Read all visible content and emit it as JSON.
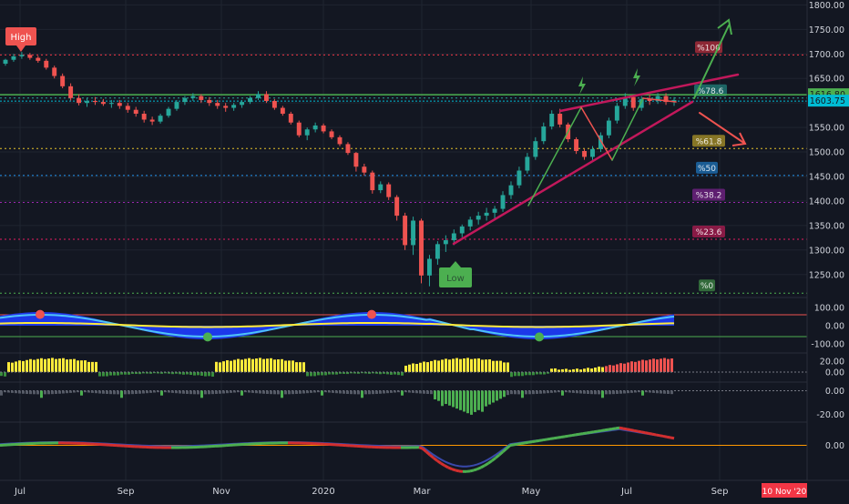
{
  "chart_data": {
    "type": "candlestick",
    "price_axis": {
      "ticks": [
        "1800.00",
        "1750.00",
        "1700.00",
        "1650.00",
        "1600.00",
        "1550.00",
        "1500.00",
        "1450.00",
        "1400.00",
        "1350.00",
        "1300.00",
        "1250.00"
      ],
      "ylim": [
        1205,
        1810
      ]
    },
    "price_tags": [
      {
        "label": "1616.80",
        "value": 1616.8,
        "color": "#4caf50"
      },
      {
        "label": "1603.75",
        "value": 1603.75,
        "color": "#00bcd4"
      }
    ],
    "x_axis": {
      "labels": [
        "Jul",
        "Sep",
        "Nov",
        "2020",
        "Mar",
        "May",
        "Jul",
        "Sep"
      ],
      "date_badge": "10 Nov '20"
    },
    "markers": {
      "high_label": "High",
      "low_label": "Low"
    },
    "fib_levels": [
      {
        "label": "%100",
        "value": 1698,
        "color": "#f23645"
      },
      {
        "label": "%78.6",
        "value": 1610,
        "color": "#26a69a"
      },
      {
        "label": "%61.8",
        "value": 1507,
        "color": "#e6c229"
      },
      {
        "label": "%50",
        "value": 1452,
        "color": "#2196f3"
      },
      {
        "label": "%38.2",
        "value": 1397,
        "color": "#9c27b0"
      },
      {
        "label": "%23.6",
        "value": 1322,
        "color": "#e91e63"
      },
      {
        "label": "%0",
        "value": 1212,
        "color": "#4caf50"
      }
    ],
    "candles": [
      [
        1680,
        1690,
        1676,
        1688
      ],
      [
        1688,
        1700,
        1684,
        1695
      ],
      [
        1695,
        1704,
        1690,
        1698
      ],
      [
        1698,
        1702,
        1688,
        1692
      ],
      [
        1692,
        1696,
        1682,
        1686
      ],
      [
        1686,
        1690,
        1668,
        1672
      ],
      [
        1672,
        1676,
        1650,
        1655
      ],
      [
        1655,
        1660,
        1630,
        1634
      ],
      [
        1634,
        1640,
        1605,
        1610
      ],
      [
        1610,
        1618,
        1595,
        1600
      ],
      [
        1600,
        1610,
        1592,
        1604
      ],
      [
        1604,
        1612,
        1596,
        1602
      ],
      [
        1602,
        1608,
        1594,
        1598
      ],
      [
        1598,
        1606,
        1590,
        1600
      ],
      [
        1600,
        1606,
        1588,
        1594
      ],
      [
        1594,
        1600,
        1580,
        1586
      ],
      [
        1586,
        1592,
        1572,
        1578
      ],
      [
        1578,
        1584,
        1560,
        1566
      ],
      [
        1566,
        1572,
        1555,
        1562
      ],
      [
        1562,
        1578,
        1558,
        1574
      ],
      [
        1574,
        1592,
        1570,
        1588
      ],
      [
        1588,
        1606,
        1584,
        1602
      ],
      [
        1602,
        1614,
        1596,
        1610
      ],
      [
        1610,
        1620,
        1604,
        1614
      ],
      [
        1614,
        1618,
        1600,
        1606
      ],
      [
        1606,
        1612,
        1594,
        1600
      ],
      [
        1600,
        1606,
        1588,
        1594
      ],
      [
        1594,
        1600,
        1582,
        1590
      ],
      [
        1590,
        1600,
        1584,
        1596
      ],
      [
        1596,
        1606,
        1590,
        1602
      ],
      [
        1602,
        1614,
        1598,
        1610
      ],
      [
        1610,
        1624,
        1606,
        1618
      ],
      [
        1618,
        1624,
        1600,
        1604
      ],
      [
        1604,
        1608,
        1586,
        1590
      ],
      [
        1590,
        1594,
        1574,
        1578
      ],
      [
        1578,
        1582,
        1556,
        1560
      ],
      [
        1560,
        1564,
        1530,
        1534
      ],
      [
        1534,
        1550,
        1524,
        1546
      ],
      [
        1546,
        1560,
        1540,
        1554
      ],
      [
        1554,
        1558,
        1538,
        1542
      ],
      [
        1542,
        1546,
        1526,
        1530
      ],
      [
        1530,
        1534,
        1512,
        1516
      ],
      [
        1516,
        1520,
        1494,
        1498
      ],
      [
        1498,
        1500,
        1460,
        1470
      ],
      [
        1470,
        1476,
        1452,
        1458
      ],
      [
        1458,
        1462,
        1415,
        1422
      ],
      [
        1422,
        1440,
        1416,
        1434
      ],
      [
        1434,
        1438,
        1402,
        1408
      ],
      [
        1408,
        1412,
        1360,
        1370
      ],
      [
        1370,
        1376,
        1300,
        1310
      ],
      [
        1310,
        1368,
        1290,
        1360
      ],
      [
        1360,
        1364,
        1232,
        1248
      ],
      [
        1248,
        1290,
        1226,
        1282
      ],
      [
        1282,
        1318,
        1270,
        1312
      ],
      [
        1312,
        1330,
        1296,
        1320
      ],
      [
        1320,
        1342,
        1310,
        1334
      ],
      [
        1334,
        1352,
        1326,
        1348
      ],
      [
        1348,
        1368,
        1340,
        1362
      ],
      [
        1362,
        1378,
        1352,
        1370
      ],
      [
        1370,
        1386,
        1360,
        1376
      ],
      [
        1376,
        1390,
        1364,
        1384
      ],
      [
        1384,
        1420,
        1378,
        1412
      ],
      [
        1412,
        1440,
        1404,
        1432
      ],
      [
        1432,
        1470,
        1426,
        1462
      ],
      [
        1462,
        1498,
        1456,
        1490
      ],
      [
        1490,
        1530,
        1484,
        1522
      ],
      [
        1522,
        1560,
        1516,
        1552
      ],
      [
        1552,
        1585,
        1546,
        1578
      ],
      [
        1578,
        1588,
        1550,
        1556
      ],
      [
        1556,
        1560,
        1520,
        1526
      ],
      [
        1526,
        1530,
        1496,
        1502
      ],
      [
        1502,
        1506,
        1484,
        1490
      ],
      [
        1490,
        1512,
        1484,
        1506
      ],
      [
        1506,
        1540,
        1500,
        1534
      ],
      [
        1534,
        1570,
        1528,
        1564
      ],
      [
        1564,
        1600,
        1558,
        1594
      ],
      [
        1594,
        1620,
        1588,
        1612
      ],
      [
        1612,
        1616,
        1584,
        1590
      ],
      [
        1590,
        1614,
        1584,
        1608
      ],
      [
        1608,
        1618,
        1596,
        1604
      ],
      [
        1604,
        1620,
        1598,
        1614
      ],
      [
        1614,
        1620,
        1596,
        1602
      ],
      [
        1602,
        1612,
        1594,
        1606
      ]
    ],
    "oscillator": {
      "ticks": [
        "100.00",
        "0.00",
        "-100.00"
      ],
      "ylim": [
        -140,
        140
      ]
    },
    "histogram": {
      "ticks": [
        "20.00",
        "0.00"
      ],
      "ylim": [
        -15,
        30
      ]
    },
    "bar_panel": {
      "ticks": [
        "0.00",
        "-20.00"
      ],
      "ylim": [
        -25,
        5
      ]
    },
    "macd": {
      "ticks": [
        "0.00"
      ],
      "ylim": [
        -60,
        35
      ]
    }
  }
}
